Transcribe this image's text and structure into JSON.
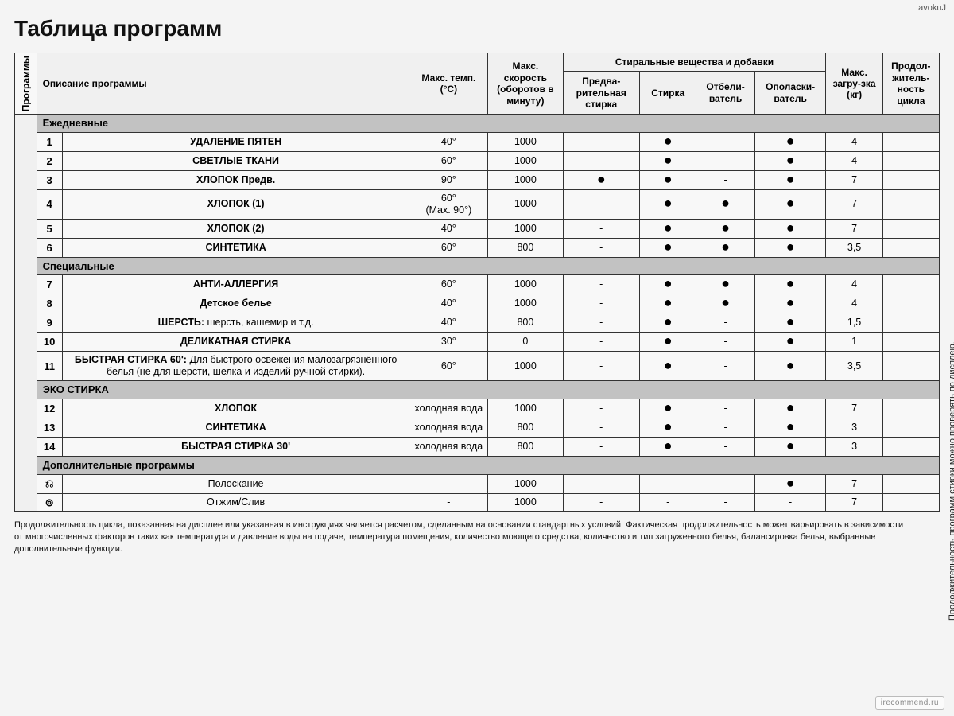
{
  "watermark_top": "avokuJ",
  "watermark_bottom": "irecommend.ru",
  "title": "Таблица программ",
  "side_note": "Продолжительность программ стирки можно проверять по дисплею.",
  "headers": {
    "programs_col": "Программы",
    "description": "Описание программы",
    "max_temp": "Макс. темп. (°C)",
    "max_speed": "Макс. скорость (оборотов в минуту)",
    "detergents_group": "Стиральные вещества и добавки",
    "prewash": "Предва-рительная стирка",
    "wash": "Стирка",
    "bleach": "Отбели-ватель",
    "rinse": "Ополаски-ватель",
    "max_load": "Макс. загру-зка (кг)",
    "duration": "Продол-житель-ность цикла"
  },
  "sections": [
    {
      "label": "Ежедневные",
      "rows": [
        {
          "num": "1",
          "desc": "УДАЛЕНИЕ ПЯТЕН",
          "temp": "40°",
          "speed": "1000",
          "pre": "-",
          "wash": "●",
          "bleach": "-",
          "rinse": "●",
          "load": "4",
          "dur": ""
        },
        {
          "num": "2",
          "desc": "СВЕТЛЫЕ ТКАНИ",
          "temp": "60°",
          "speed": "1000",
          "pre": "-",
          "wash": "●",
          "bleach": "-",
          "rinse": "●",
          "load": "4",
          "dur": ""
        },
        {
          "num": "3",
          "desc": "ХЛОПОК Предв.",
          "temp": "90°",
          "speed": "1000",
          "pre": "●",
          "wash": "●",
          "bleach": "-",
          "rinse": "●",
          "load": "7",
          "dur": ""
        },
        {
          "num": "4",
          "desc": "ХЛОПОК (1)",
          "temp": "60°\n(Max. 90°)",
          "speed": "1000",
          "pre": "-",
          "wash": "●",
          "bleach": "●",
          "rinse": "●",
          "load": "7",
          "dur": ""
        },
        {
          "num": "5",
          "desc": "ХЛОПОК (2)",
          "temp": "40°",
          "speed": "1000",
          "pre": "-",
          "wash": "●",
          "bleach": "●",
          "rinse": "●",
          "load": "7",
          "dur": ""
        },
        {
          "num": "6",
          "desc": "СИНТЕТИКА",
          "temp": "60°",
          "speed": "800",
          "pre": "-",
          "wash": "●",
          "bleach": "●",
          "rinse": "●",
          "load": "3,5",
          "dur": ""
        }
      ]
    },
    {
      "label": "Специальные",
      "rows": [
        {
          "num": "7",
          "desc": "АНТИ-АЛЛЕРГИЯ",
          "temp": "60°",
          "speed": "1000",
          "pre": "-",
          "wash": "●",
          "bleach": "●",
          "rinse": "●",
          "load": "4",
          "dur": ""
        },
        {
          "num": "8",
          "desc": "Детское белье",
          "temp": "40°",
          "speed": "1000",
          "pre": "-",
          "wash": "●",
          "bleach": "●",
          "rinse": "●",
          "load": "4",
          "dur": ""
        },
        {
          "num": "9",
          "desc": "ШЕРСТЬ: <span class='sub'>шерсть, кашемир и т.д.</span>",
          "raw_html": true,
          "temp": "40°",
          "speed": "800",
          "pre": "-",
          "wash": "●",
          "bleach": "-",
          "rinse": "●",
          "load": "1,5",
          "dur": ""
        },
        {
          "num": "10",
          "desc": "ДЕЛИКАТНАЯ СТИРКА",
          "temp": "30°",
          "speed": "0",
          "pre": "-",
          "wash": "●",
          "bleach": "-",
          "rinse": "●",
          "load": "1",
          "dur": ""
        },
        {
          "num": "11",
          "desc": "БЫСТРАЯ СТИРКА 60': <span class='sub'>Для быстрого освежения малозагрязнённого белья (не для шерсти, шелка и изделий ручной стирки).</span>",
          "raw_html": true,
          "temp": "60°",
          "speed": "1000",
          "pre": "-",
          "wash": "●",
          "bleach": "-",
          "rinse": "●",
          "load": "3,5",
          "dur": ""
        }
      ]
    },
    {
      "label": "ЭКО СТИРКА",
      "rows": [
        {
          "num": "12",
          "desc": "ХЛОПОК",
          "temp": "холодная вода",
          "speed": "1000",
          "pre": "-",
          "wash": "●",
          "bleach": "-",
          "rinse": "●",
          "load": "7",
          "dur": ""
        },
        {
          "num": "13",
          "desc": "СИНТЕТИКА",
          "temp": "холодная вода",
          "speed": "800",
          "pre": "-",
          "wash": "●",
          "bleach": "-",
          "rinse": "●",
          "load": "3",
          "dur": ""
        },
        {
          "num": "14",
          "desc": "БЫСТРАЯ СТИРКА 30'",
          "temp": "холодная вода",
          "speed": "800",
          "pre": "-",
          "wash": "●",
          "bleach": "-",
          "rinse": "●",
          "load": "3",
          "dur": ""
        }
      ]
    },
    {
      "label": "Дополнительные программы",
      "rows": [
        {
          "num": "⎌",
          "icon": true,
          "desc": "Полоскание",
          "desc_normal": true,
          "temp": "-",
          "speed": "1000",
          "pre": "-",
          "wash": "-",
          "bleach": "-",
          "rinse": "●",
          "load": "7",
          "dur": ""
        },
        {
          "num": "⊚",
          "icon": true,
          "desc": "Отжим/Слив",
          "desc_normal": true,
          "temp": "-",
          "speed": "1000",
          "pre": "-",
          "wash": "-",
          "bleach": "-",
          "rinse": "-",
          "load": "7",
          "dur": ""
        }
      ]
    }
  ],
  "footnote": "Продолжительность цикла, показанная на дисплее или указанная в инструкциях является расчетом, сделанным на основании стандартных условий. Фактическая продолжительность может варьировать в зависимости от многочисленных факторов таких как температура и давление воды на подаче, температура помещения, количество моющего средства, количество и тип загруженного белья, балансировка белья, выбранные дополнительные функции.",
  "colors": {
    "border": "#333333",
    "section_bg": "#c2c2c2",
    "page_bg": "#f4f4f4"
  }
}
